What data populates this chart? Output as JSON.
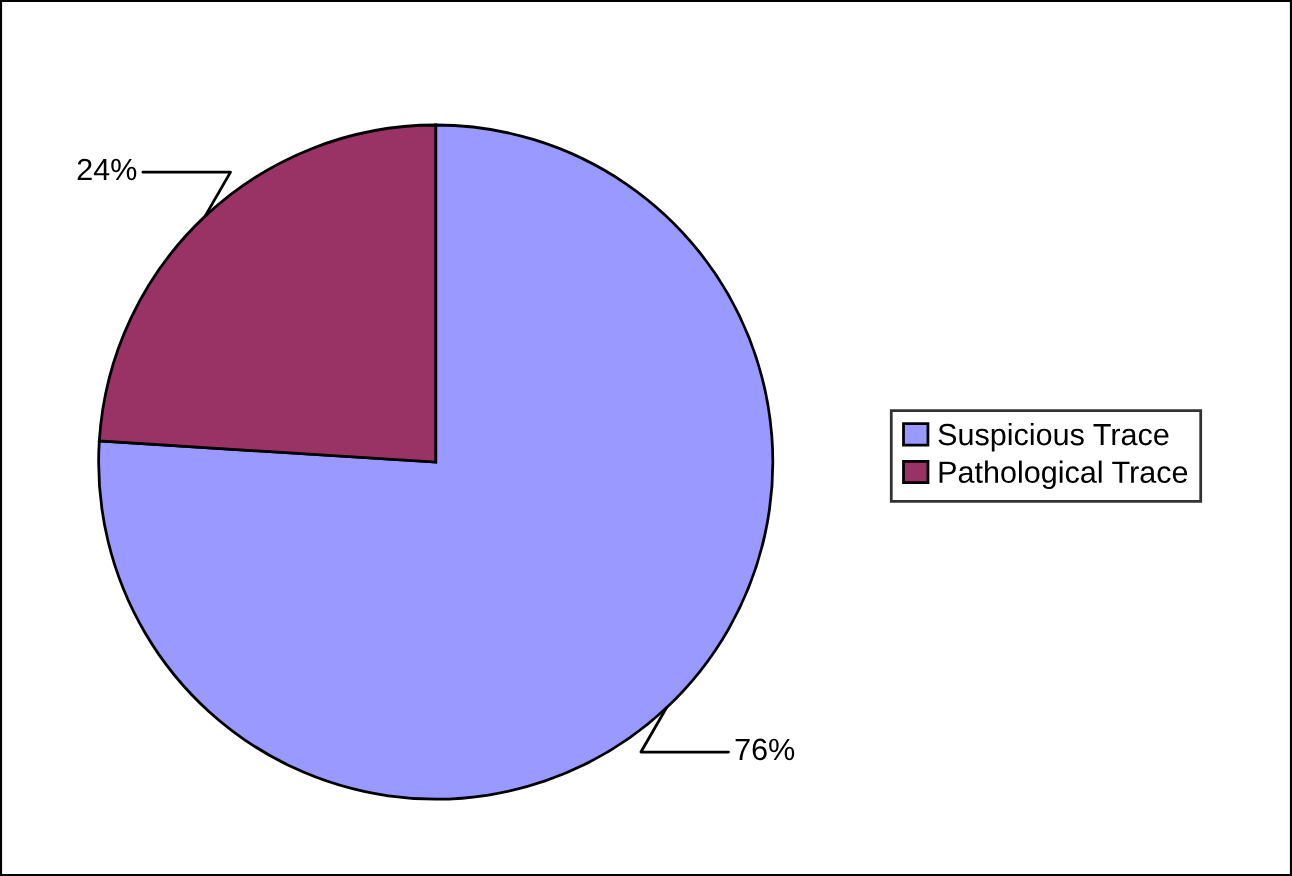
{
  "chart_data": {
    "type": "pie",
    "categories": [
      "Suspicious Trace",
      "Pathological Trace"
    ],
    "values": [
      76,
      24
    ],
    "colors": [
      "#9999ff",
      "#993366"
    ],
    "value_labels": [
      "76%",
      "24%"
    ],
    "legend": "right"
  }
}
